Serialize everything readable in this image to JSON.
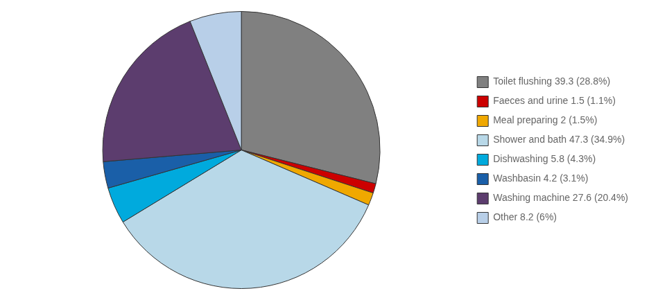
{
  "chart_data": {
    "type": "pie",
    "categories": [
      "Toilet flushing 39.3 (28.8%)",
      "Faeces and urine 1.5 (1.1%)",
      "Meal preparing 2 (1.5%)",
      "Shower and bath 47.3 (34.9%)",
      "Dishwashing 5.8 (4.3%)",
      "Washbasin 4.2 (3.1%)",
      "Washing machine 27.6 (20.4%)",
      "Other 8.2 (6%)"
    ],
    "values": [
      39.3,
      1.5,
      2.0,
      47.3,
      5.8,
      4.2,
      27.6,
      8.2
    ],
    "colors": [
      "#808080",
      "#cc0000",
      "#f0a800",
      "#b8d8e8",
      "#00aadd",
      "#1a5fa8",
      "#5c3d6e",
      "#b8cfe8"
    ],
    "legend": "right"
  }
}
